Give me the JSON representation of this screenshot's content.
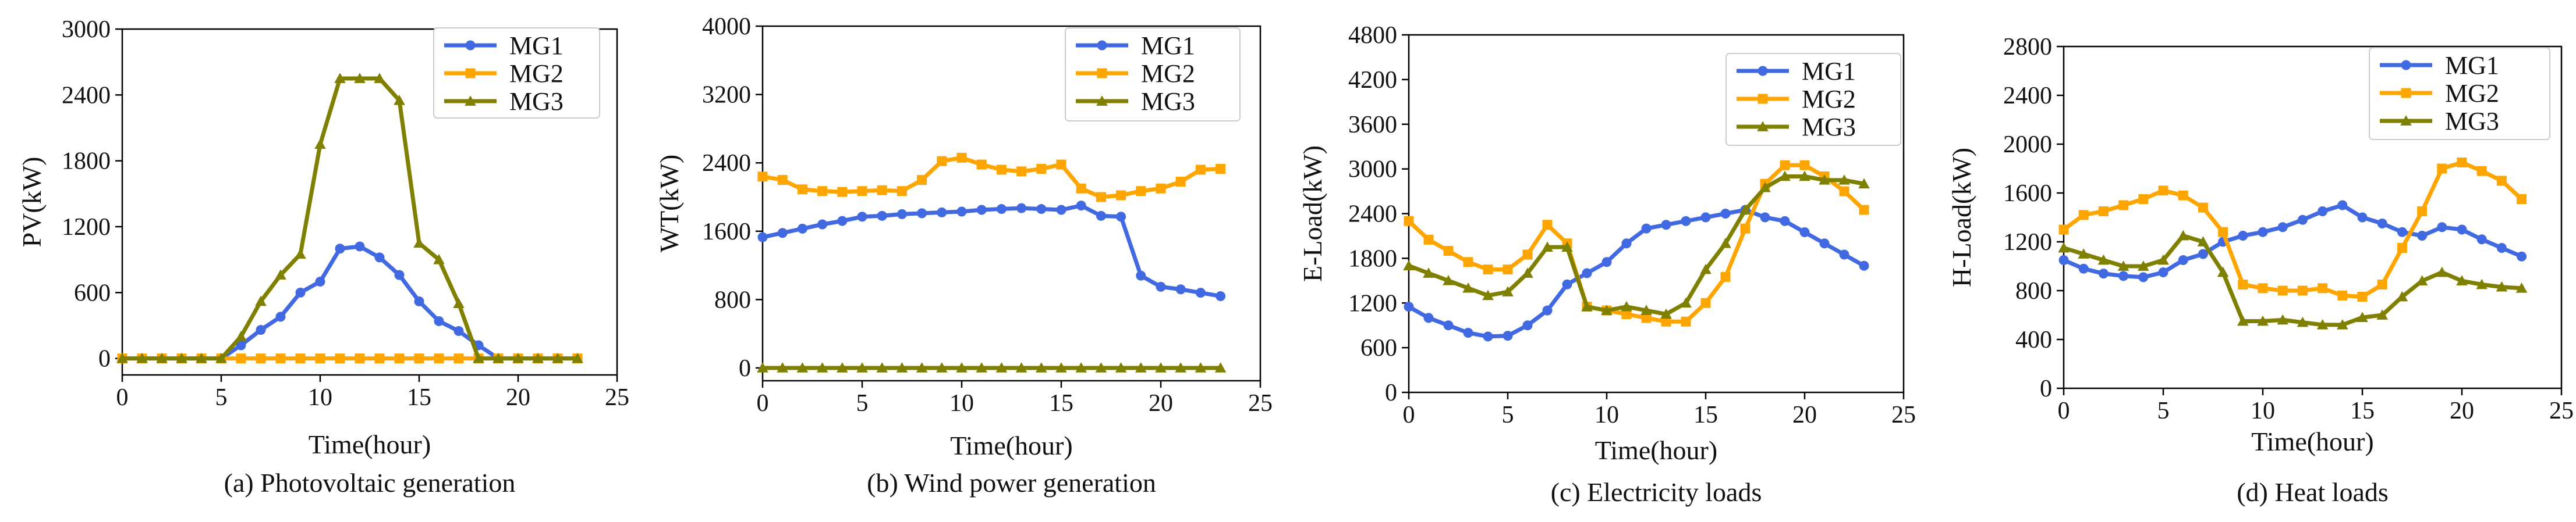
{
  "styles": {
    "MG1": {
      "color": "#4169E1",
      "marker": "circle"
    },
    "MG2": {
      "color": "#FFA500",
      "marker": "square"
    },
    "MG3": {
      "color": "#808000",
      "marker": "triangle"
    }
  },
  "chart_data": [
    {
      "id": "a",
      "type": "line",
      "title": "(a) Photovoltaic generation",
      "xlabel": "Time(hour)",
      "ylabel": "PV(kW)",
      "xlim": [
        0,
        25
      ],
      "ylim": [
        -150,
        3000
      ],
      "xticks": [
        0,
        5,
        10,
        15,
        20,
        25
      ],
      "yticks": [
        0,
        600,
        1200,
        1800,
        2400,
        3000
      ],
      "legend_position": "top-right",
      "x": [
        0,
        1,
        2,
        3,
        4,
        5,
        6,
        7,
        8,
        9,
        10,
        11,
        12,
        13,
        14,
        15,
        16,
        17,
        18,
        19,
        20,
        21,
        22,
        23
      ],
      "series": [
        {
          "name": "MG1",
          "values": [
            0,
            0,
            0,
            0,
            0,
            0,
            120,
            260,
            380,
            600,
            700,
            1000,
            1020,
            920,
            760,
            520,
            340,
            250,
            120,
            0,
            0,
            0,
            0,
            0
          ]
        },
        {
          "name": "MG2",
          "values": [
            0,
            0,
            0,
            0,
            0,
            0,
            0,
            0,
            0,
            0,
            0,
            0,
            0,
            0,
            0,
            0,
            0,
            0,
            0,
            0,
            0,
            0,
            0,
            0
          ]
        },
        {
          "name": "MG3",
          "values": [
            0,
            0,
            0,
            0,
            0,
            0,
            200,
            520,
            760,
            950,
            1950,
            2550,
            2550,
            2550,
            2350,
            1050,
            900,
            500,
            0,
            0,
            0,
            0,
            0,
            0
          ]
        }
      ]
    },
    {
      "id": "b",
      "type": "line",
      "title": "(b) Wind power generation",
      "xlabel": "Time(hour)",
      "ylabel": "WT(kW)",
      "xlim": [
        0,
        25
      ],
      "ylim": [
        -150,
        4000
      ],
      "xticks": [
        0,
        5,
        10,
        15,
        20,
        25
      ],
      "yticks": [
        0,
        800,
        1600,
        2400,
        3200,
        4000
      ],
      "legend_position": "top-right",
      "x": [
        0,
        1,
        2,
        3,
        4,
        5,
        6,
        7,
        8,
        9,
        10,
        11,
        12,
        13,
        14,
        15,
        16,
        17,
        18,
        19,
        20,
        21,
        22,
        23
      ],
      "series": [
        {
          "name": "MG1",
          "values": [
            1530,
            1580,
            1630,
            1680,
            1720,
            1770,
            1780,
            1800,
            1810,
            1820,
            1830,
            1850,
            1860,
            1870,
            1860,
            1850,
            1900,
            1780,
            1770,
            1080,
            950,
            920,
            880,
            840
          ]
        },
        {
          "name": "MG2",
          "values": [
            2240,
            2200,
            2090,
            2070,
            2060,
            2070,
            2080,
            2070,
            2200,
            2420,
            2460,
            2380,
            2320,
            2300,
            2330,
            2380,
            2100,
            2000,
            2020,
            2070,
            2100,
            2180,
            2320,
            2330
          ]
        },
        {
          "name": "MG3",
          "values": [
            0,
            0,
            0,
            0,
            0,
            0,
            0,
            0,
            0,
            0,
            0,
            0,
            0,
            0,
            0,
            0,
            0,
            0,
            0,
            0,
            0,
            0,
            0,
            0
          ]
        }
      ]
    },
    {
      "id": "c",
      "type": "line",
      "title": "(c) Electricity loads",
      "xlabel": "Time(hour)",
      "ylabel": "E-Load(kW)",
      "xlim": [
        0,
        25
      ],
      "ylim": [
        0,
        4800
      ],
      "xticks": [
        0,
        5,
        10,
        15,
        20,
        25
      ],
      "yticks": [
        0,
        600,
        1200,
        1800,
        2400,
        3000,
        3600,
        4200,
        4800
      ],
      "legend_position": "top-right",
      "x": [
        0,
        1,
        2,
        3,
        4,
        5,
        6,
        7,
        8,
        9,
        10,
        11,
        12,
        13,
        14,
        15,
        16,
        17,
        18,
        19,
        20,
        21,
        22,
        23
      ],
      "series": [
        {
          "name": "MG1",
          "values": [
            1150,
            1000,
            900,
            800,
            750,
            760,
            900,
            1100,
            1450,
            1600,
            1750,
            2000,
            2200,
            2250,
            2300,
            2350,
            2400,
            2450,
            2350,
            2300,
            2150,
            2000,
            1850,
            1700
          ]
        },
        {
          "name": "MG2",
          "values": [
            2300,
            2050,
            1900,
            1750,
            1650,
            1650,
            1850,
            2250,
            2000,
            1150,
            1100,
            1050,
            1000,
            950,
            950,
            1200,
            1550,
            2200,
            2800,
            3050,
            3050,
            2900,
            2700,
            2450
          ]
        },
        {
          "name": "MG3",
          "values": [
            1700,
            1600,
            1500,
            1400,
            1300,
            1350,
            1600,
            1950,
            1950,
            1150,
            1100,
            1150,
            1100,
            1050,
            1200,
            1650,
            2000,
            2450,
            2750,
            2900,
            2900,
            2850,
            2850,
            2800
          ]
        }
      ]
    },
    {
      "id": "d",
      "type": "line",
      "title": "(d) Heat loads",
      "xlabel": "Time(hour)",
      "ylabel": "H-Load(kW)",
      "xlim": [
        0,
        25
      ],
      "ylim": [
        0,
        2800
      ],
      "xticks": [
        0,
        5,
        10,
        15,
        20,
        25
      ],
      "yticks": [
        0,
        400,
        800,
        1200,
        1600,
        2000,
        2400,
        2800
      ],
      "legend_position": "top-right",
      "x": [
        0,
        1,
        2,
        3,
        4,
        5,
        6,
        7,
        8,
        9,
        10,
        11,
        12,
        13,
        14,
        15,
        16,
        17,
        18,
        19,
        20,
        21,
        22,
        23
      ],
      "series": [
        {
          "name": "MG1",
          "values": [
            1050,
            980,
            940,
            920,
            910,
            950,
            1050,
            1100,
            1200,
            1250,
            1280,
            1320,
            1380,
            1450,
            1500,
            1400,
            1350,
            1280,
            1250,
            1320,
            1300,
            1220,
            1150,
            1080
          ]
        },
        {
          "name": "MG2",
          "values": [
            1300,
            1420,
            1450,
            1500,
            1550,
            1620,
            1580,
            1480,
            1280,
            850,
            820,
            800,
            800,
            820,
            760,
            750,
            850,
            1150,
            1450,
            1800,
            1850,
            1780,
            1700,
            1550
          ]
        },
        {
          "name": "MG3",
          "values": [
            1150,
            1100,
            1050,
            1000,
            1000,
            1050,
            1250,
            1200,
            950,
            550,
            550,
            560,
            540,
            520,
            520,
            580,
            600,
            750,
            880,
            950,
            880,
            850,
            830,
            820
          ]
        }
      ]
    }
  ]
}
